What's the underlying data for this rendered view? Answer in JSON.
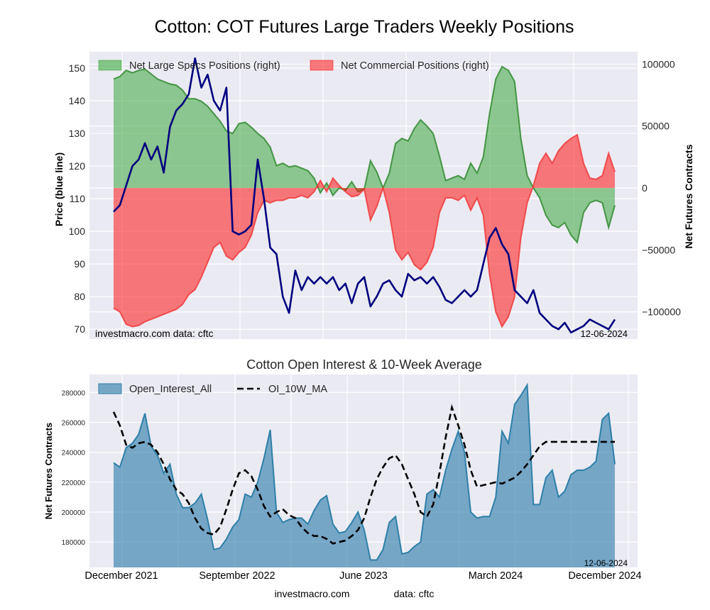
{
  "chart_data": [
    {
      "type": "line",
      "title": "Cotton: COT Futures Large Traders Weekly Positions",
      "ylabel": "Price (blue line)",
      "ylabel_right": "Net Futures Contracts",
      "ylim": [
        67,
        155
      ],
      "ylim_right": [
        -122000,
        110000
      ],
      "yticks": [
        70,
        80,
        90,
        100,
        110,
        120,
        130,
        140,
        150
      ],
      "yticks_right": [
        -100000,
        -50000,
        0,
        50000,
        100000
      ],
      "grid": true,
      "legend_placement": "top",
      "watermark": "investmacro.com    data: cftc",
      "date_stamp": "12-06-2024",
      "x": [
        0,
        1,
        2,
        3,
        4,
        5,
        6,
        7,
        8,
        9,
        10,
        11,
        12,
        13,
        14,
        15,
        16,
        17,
        18,
        19,
        20,
        21,
        22,
        23,
        24,
        25,
        26,
        27,
        28,
        29,
        30,
        31,
        32,
        33,
        34,
        35,
        36,
        37,
        38,
        39,
        40,
        41,
        42,
        43,
        44,
        45,
        46,
        47,
        48,
        49,
        50,
        51,
        52,
        53,
        54,
        55,
        56,
        57,
        58,
        59,
        60,
        61,
        62,
        63,
        64,
        65,
        66,
        67,
        68,
        69,
        70,
        71,
        72,
        73,
        74,
        75,
        76,
        77,
        78,
        79,
        80
      ],
      "series": [
        {
          "name": "Net Large Specs Positions (right)",
          "kind": "area",
          "color": "#2ca02c",
          "values": [
            88000,
            90000,
            95000,
            93000,
            95000,
            96000,
            92000,
            88000,
            86000,
            84000,
            83000,
            79000,
            72000,
            72000,
            70000,
            66000,
            60000,
            54000,
            46000,
            44000,
            52000,
            53000,
            49000,
            44000,
            40000,
            33000,
            18000,
            20000,
            17000,
            18000,
            16000,
            14000,
            8000,
            -4000,
            4000,
            -6000,
            0,
            -2000,
            5000,
            -3000,
            -1000,
            22000,
            13000,
            0,
            12000,
            36000,
            40000,
            38000,
            48000,
            55000,
            50000,
            44000,
            26000,
            6000,
            8000,
            10000,
            7000,
            20000,
            12000,
            25000,
            60000,
            88000,
            98000,
            95000,
            86000,
            40000,
            10000,
            0,
            -8000,
            -22000,
            -30000,
            -32000,
            -28000,
            -38000,
            -44000,
            -20000,
            -12000,
            -10000,
            -12000,
            -32000,
            -14000
          ]
        },
        {
          "name": "Net Commercial Positions (right)",
          "kind": "area",
          "color": "#ff0000",
          "values": [
            -97000,
            -100000,
            -110000,
            -112000,
            -111000,
            -108000,
            -106000,
            -104000,
            -102000,
            -100000,
            -98000,
            -94000,
            -86000,
            -82000,
            -72000,
            -60000,
            -48000,
            -44000,
            -55000,
            -58000,
            -52000,
            -48000,
            -38000,
            -20000,
            -10000,
            -12000,
            -10000,
            -10000,
            -8000,
            -8000,
            -6000,
            -8000,
            -3000,
            6000,
            -3000,
            8000,
            2000,
            -3000,
            -7000,
            -6000,
            -1000,
            -26000,
            -15000,
            0,
            -20000,
            -50000,
            -58000,
            -52000,
            -62000,
            -66000,
            -60000,
            -48000,
            -20000,
            -8000,
            -8000,
            -10000,
            -6000,
            -18000,
            -8000,
            -22000,
            -70000,
            -100000,
            -112000,
            -104000,
            -88000,
            -40000,
            -12000,
            2000,
            20000,
            28000,
            20000,
            30000,
            36000,
            40000,
            43000,
            20000,
            8000,
            7000,
            10000,
            28000,
            13000
          ]
        },
        {
          "name": "Price",
          "kind": "line",
          "color": "#00007f",
          "values": [
            106,
            108,
            114,
            120,
            122,
            127,
            122,
            126,
            118,
            132,
            137,
            139,
            142,
            153,
            144,
            148,
            140,
            137,
            144,
            100,
            99,
            100,
            102,
            122,
            110,
            95,
            93,
            80,
            75,
            88,
            82,
            86,
            84,
            86,
            84,
            86,
            82,
            84,
            78,
            84,
            86,
            77,
            80,
            84,
            85,
            82,
            80,
            87,
            85,
            86,
            84,
            86,
            83,
            79,
            78,
            80,
            82,
            80,
            82,
            90,
            98,
            101,
            96,
            93,
            82,
            80,
            78,
            82,
            75,
            73,
            71,
            70,
            72,
            69,
            70,
            71,
            73,
            72,
            71,
            70,
            73
          ]
        }
      ]
    },
    {
      "type": "area",
      "title": "Cotton Open Interest & 10-Week Average",
      "ylabel": "Net Futures Contracts",
      "ylim": [
        163000,
        292000
      ],
      "yticks": [
        180000,
        200000,
        220000,
        240000,
        260000,
        280000
      ],
      "xticks": [
        "December 2021",
        "September 2022",
        "June 2023",
        "March 2024",
        "December 2024"
      ],
      "grid": true,
      "legend_placement": "top-left",
      "date_stamp": "12-06-2024",
      "footer": "investmacro.com                data: cftc",
      "x": [
        0,
        1,
        2,
        3,
        4,
        5,
        6,
        7,
        8,
        9,
        10,
        11,
        12,
        13,
        14,
        15,
        16,
        17,
        18,
        19,
        20,
        21,
        22,
        23,
        24,
        25,
        26,
        27,
        28,
        29,
        30,
        31,
        32,
        33,
        34,
        35,
        36,
        37,
        38,
        39,
        40,
        41,
        42,
        43,
        44,
        45,
        46,
        47,
        48,
        49,
        50,
        51,
        52,
        53,
        54,
        55,
        56,
        57,
        58,
        59,
        60,
        61,
        62,
        63,
        64,
        65,
        66,
        67,
        68,
        69,
        70,
        71,
        72,
        73,
        74,
        75,
        76,
        77,
        78,
        79,
        80
      ],
      "series": [
        {
          "name": "Open_Interest_All",
          "kind": "area",
          "color": "#2878a8",
          "values": [
            233000,
            230000,
            243000,
            246000,
            252000,
            266000,
            244000,
            238000,
            226000,
            232000,
            212000,
            203000,
            203000,
            206000,
            212000,
            195000,
            175000,
            176000,
            182000,
            190000,
            195000,
            212000,
            210000,
            220000,
            236000,
            255000,
            200000,
            193000,
            195000,
            196000,
            196000,
            192000,
            201000,
            208000,
            211000,
            192000,
            186000,
            187000,
            193000,
            200000,
            188000,
            168000,
            168000,
            175000,
            193000,
            197000,
            172000,
            173000,
            177000,
            180000,
            212000,
            215000,
            210000,
            228000,
            242000,
            254000,
            240000,
            200000,
            196000,
            197000,
            197000,
            210000,
            254000,
            246000,
            272000,
            278000,
            285000,
            205000,
            205000,
            223000,
            228000,
            210000,
            214000,
            225000,
            228000,
            228000,
            230000,
            234000,
            262000,
            266000,
            232000
          ]
        },
        {
          "name": "OI_10W_MA",
          "kind": "dashed-line",
          "color": "#000000",
          "values": [
            267000,
            258000,
            245000,
            243000,
            246000,
            247000,
            245000,
            240000,
            232000,
            222000,
            215000,
            212000,
            206000,
            196000,
            189000,
            186000,
            185000,
            190000,
            202000,
            215000,
            226000,
            228000,
            224000,
            215000,
            204000,
            197000,
            200000,
            202000,
            198000,
            196000,
            190000,
            186000,
            184000,
            184000,
            182000,
            179000,
            180000,
            181000,
            184000,
            188000,
            196000,
            210000,
            222000,
            230000,
            236000,
            238000,
            232000,
            222000,
            212000,
            200000,
            197000,
            205000,
            226000,
            250000,
            270000,
            258000,
            245000,
            228000,
            217000,
            218000,
            219000,
            220000,
            219000,
            221000,
            223000,
            227000,
            232000,
            238000,
            244000,
            247000,
            247000,
            247000,
            247000,
            247000,
            247000,
            247000,
            247000,
            247000,
            247000,
            247000,
            247000
          ]
        }
      ]
    }
  ]
}
